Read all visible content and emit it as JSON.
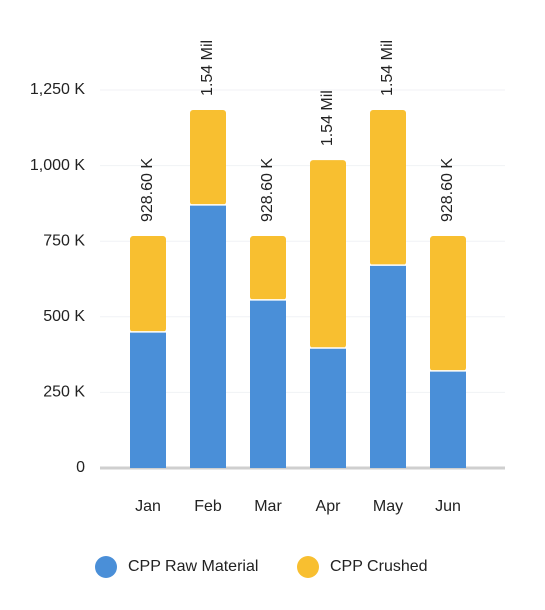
{
  "chart_data": {
    "type": "stacked_bar",
    "categories": [
      "Jan",
      "Feb",
      "Mar",
      "Apr",
      "May",
      "Jun"
    ],
    "series": [
      {
        "name": "CPP Raw Material",
        "color": "#4a8fd8",
        "values": [
          450,
          870,
          556,
          397,
          671,
          321
        ]
      },
      {
        "name": "CPP Crushed",
        "color": "#f8bf30",
        "values": [
          317,
          314,
          211,
          621,
          513,
          446
        ]
      }
    ],
    "annotations": [
      "928.60 K",
      "1.54 Mil",
      "928.60 K",
      "1.54 Mil",
      "1.54 Mil",
      "928.60 K"
    ],
    "ylim": [
      0,
      1250
    ],
    "yticks": [
      0,
      {
        "value": 250,
        "label": "250 K"
      },
      {
        "value": 500,
        "label": "500 K"
      },
      {
        "value": 750,
        "label": "750 K"
      },
      {
        "value": 1000,
        "label": "1,000 K"
      },
      {
        "value": 1250,
        "label": "1,250 K"
      }
    ],
    "grid": true,
    "legend": "bottom"
  }
}
